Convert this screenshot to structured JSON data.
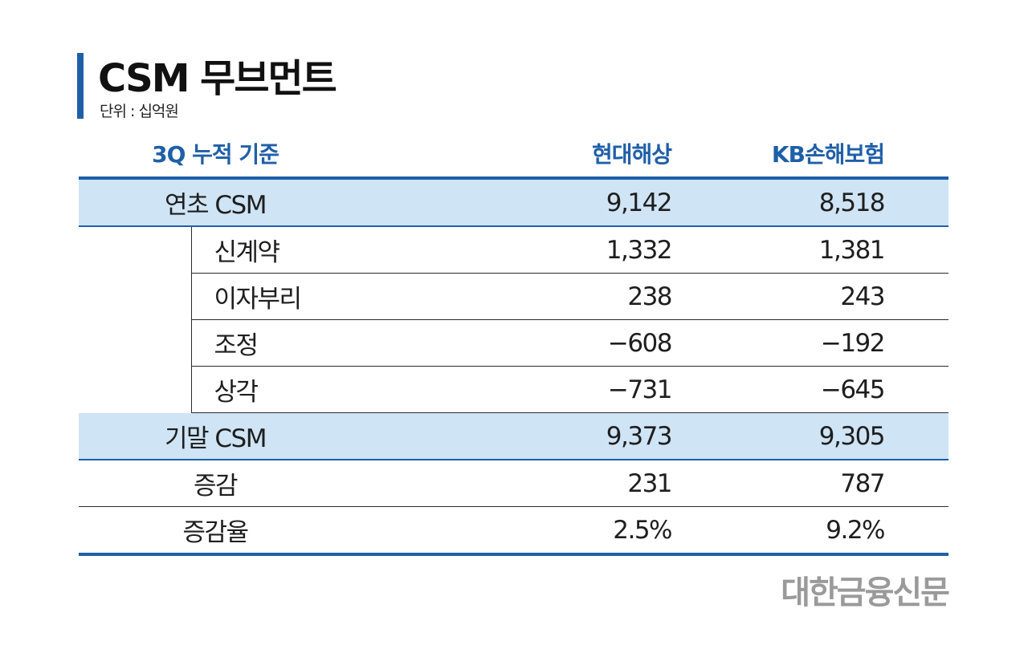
{
  "chart_data": {
    "type": "table",
    "title": "CSM 무브먼트",
    "unit_label": "단위 : 십억원",
    "header": {
      "label": "3Q 누적 기준",
      "columns": [
        "현대해상",
        "KB손해보험"
      ]
    },
    "rows": [
      {
        "label": "연초 CSM",
        "values": [
          "9,142",
          "8,518"
        ],
        "highlight": true,
        "level": 0
      },
      {
        "label": "신계약",
        "values": [
          "1,332",
          "1,381"
        ],
        "highlight": false,
        "level": 1
      },
      {
        "label": "이자부리",
        "values": [
          "238",
          "243"
        ],
        "highlight": false,
        "level": 1
      },
      {
        "label": "조정",
        "values": [
          "−608",
          "−192"
        ],
        "highlight": false,
        "level": 1
      },
      {
        "label": "상각",
        "values": [
          "−731",
          "−645"
        ],
        "highlight": false,
        "level": 1
      },
      {
        "label": "기말 CSM",
        "values": [
          "9,373",
          "9,305"
        ],
        "highlight": true,
        "level": 0
      },
      {
        "label": "증감",
        "values": [
          "231",
          "787"
        ],
        "highlight": false,
        "level": 0
      },
      {
        "label": "증감율",
        "values": [
          "2.5%",
          "9.2%"
        ],
        "highlight": false,
        "level": 0
      }
    ],
    "source": "대한금융신문",
    "colors": {
      "accent": "#1f5fa8",
      "highlight_row": "#cfe4f5",
      "source_text": "#9a9a9a"
    }
  }
}
